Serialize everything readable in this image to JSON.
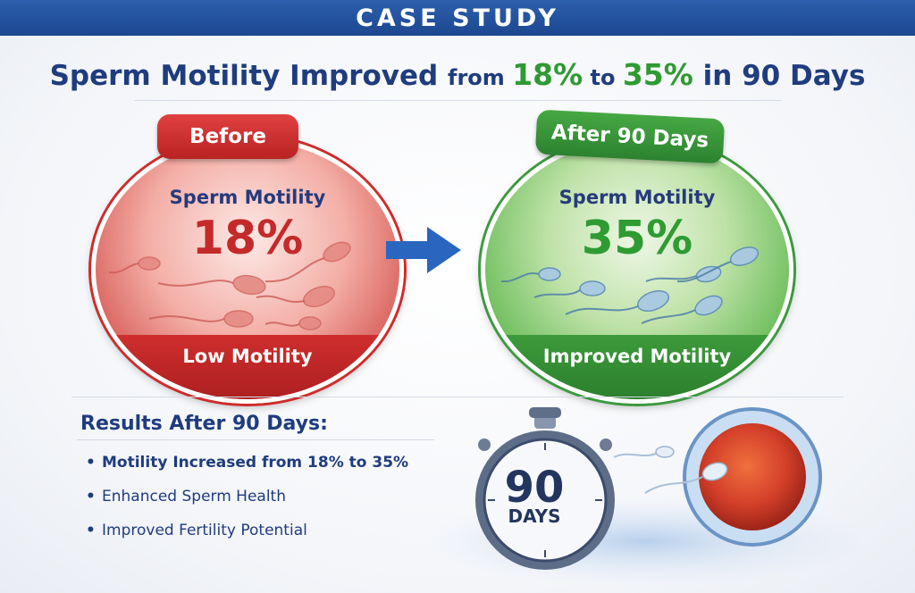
{
  "header": {
    "title": "CASE STUDY"
  },
  "headline": {
    "part1": "Sperm Motility Improved ",
    "from_word": "from ",
    "before_pct": "18%",
    "to_word": " to ",
    "after_pct": "35%",
    "part2": " in 90 Days"
  },
  "before": {
    "tag": "Before",
    "label": "Sperm Motility",
    "value": "18%",
    "footer": "Low Motility"
  },
  "after": {
    "tag": "After 90 Days",
    "label": "Sperm Motility",
    "value": "35%",
    "footer": "Improved Motility"
  },
  "results": {
    "title": "Results After 90 Days:",
    "items": [
      "Motility Increased from 18% to 35%",
      "Enhanced Sperm Health",
      "Improved Fertility Potential"
    ]
  },
  "stopwatch": {
    "number": "90",
    "unit": "DAYS"
  },
  "colors": {
    "header": "#1d4790",
    "title_blue": "#1f3c7e",
    "before_red": "#c42a2a",
    "after_green": "#2f9b33",
    "arrow_blue": "#2a66c0"
  }
}
